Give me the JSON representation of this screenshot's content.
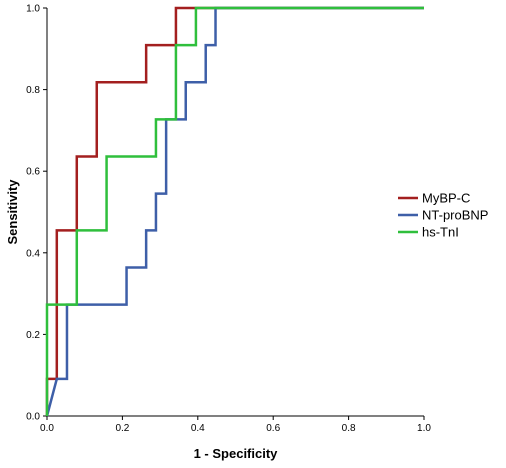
{
  "chart_data": {
    "type": "line",
    "title": "",
    "xlabel": "1 - Specificity",
    "ylabel": "Sensitivity",
    "xlim": [
      0,
      1
    ],
    "ylim": [
      0,
      1
    ],
    "x_ticks": [
      "0.0",
      "0.2",
      "0.4",
      "0.6",
      "0.8",
      "1.0"
    ],
    "y_ticks": [
      "0.0",
      "0.2",
      "0.4",
      "0.6",
      "0.8",
      "1.0"
    ],
    "grid": false,
    "legend_position": "right",
    "series": [
      {
        "name": "MyBP-C",
        "color": "#a31f1f",
        "points": [
          [
            0,
            0
          ],
          [
            0,
            0.091
          ],
          [
            0.026,
            0.091
          ],
          [
            0.026,
            0.455
          ],
          [
            0.079,
            0.455
          ],
          [
            0.079,
            0.636
          ],
          [
            0.132,
            0.636
          ],
          [
            0.132,
            0.818
          ],
          [
            0.263,
            0.818
          ],
          [
            0.263,
            0.909
          ],
          [
            0.342,
            0.909
          ],
          [
            0.342,
            1.0
          ],
          [
            1.0,
            1.0
          ]
        ]
      },
      {
        "name": "NT-proBNP",
        "color": "#3e5fa8",
        "points": [
          [
            0,
            0
          ],
          [
            0.026,
            0.091
          ],
          [
            0.053,
            0.091
          ],
          [
            0.053,
            0.273
          ],
          [
            0.211,
            0.273
          ],
          [
            0.211,
            0.364
          ],
          [
            0.263,
            0.364
          ],
          [
            0.263,
            0.455
          ],
          [
            0.289,
            0.455
          ],
          [
            0.289,
            0.545
          ],
          [
            0.316,
            0.545
          ],
          [
            0.316,
            0.727
          ],
          [
            0.368,
            0.727
          ],
          [
            0.368,
            0.818
          ],
          [
            0.421,
            0.818
          ],
          [
            0.421,
            0.909
          ],
          [
            0.447,
            0.909
          ],
          [
            0.447,
            1.0
          ],
          [
            1.0,
            1.0
          ]
        ]
      },
      {
        "name": "hs-TnI",
        "color": "#2fbf3c",
        "points": [
          [
            0,
            0
          ],
          [
            0,
            0.273
          ],
          [
            0.079,
            0.273
          ],
          [
            0.079,
            0.455
          ],
          [
            0.158,
            0.455
          ],
          [
            0.158,
            0.636
          ],
          [
            0.289,
            0.636
          ],
          [
            0.289,
            0.727
          ],
          [
            0.342,
            0.727
          ],
          [
            0.342,
            0.909
          ],
          [
            0.395,
            0.909
          ],
          [
            0.395,
            1.0
          ],
          [
            1.0,
            1.0
          ]
        ]
      }
    ]
  }
}
